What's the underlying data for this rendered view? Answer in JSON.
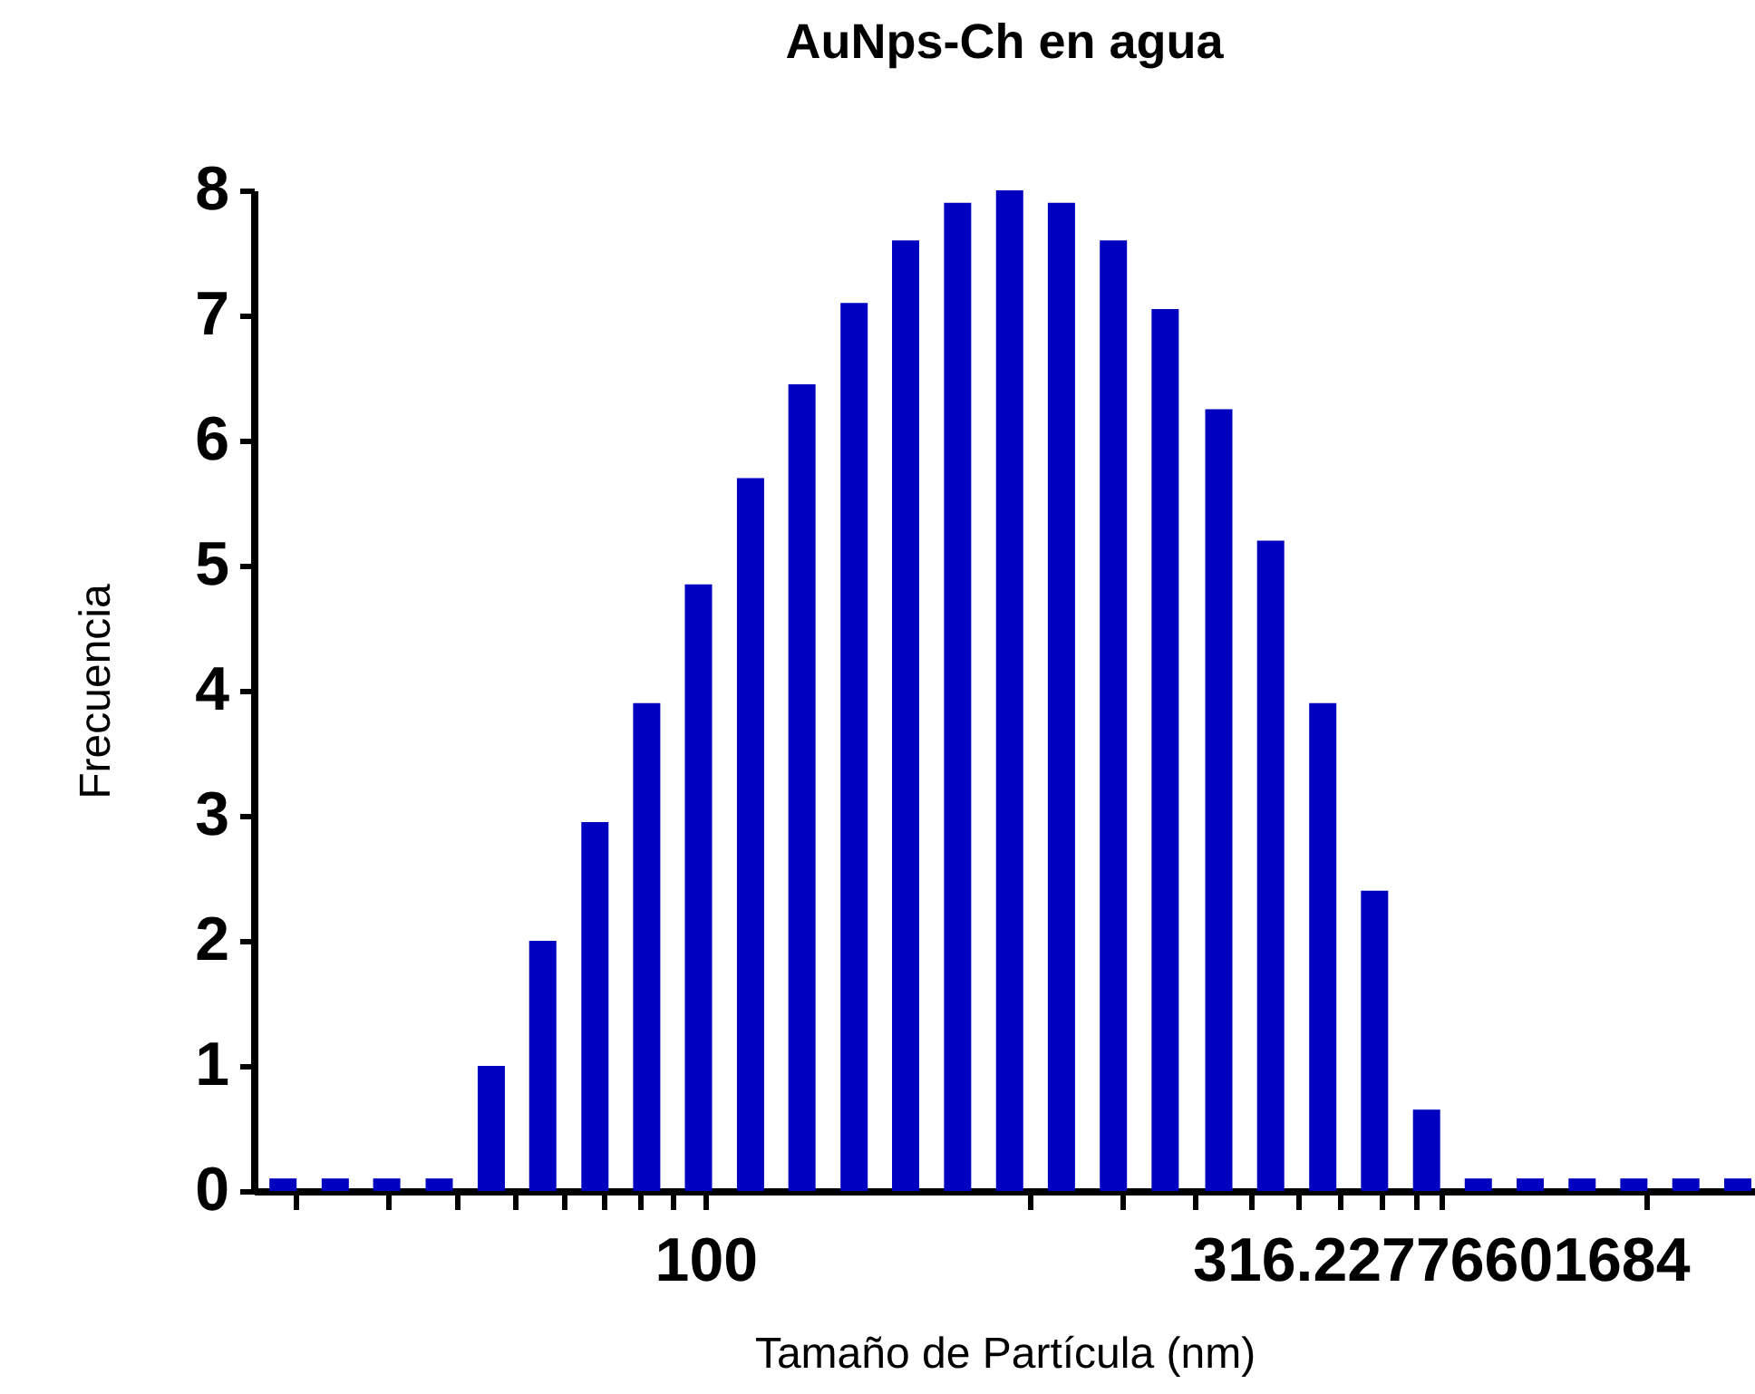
{
  "chart_data": {
    "type": "bar",
    "title": "AuNps-Ch en agua",
    "xlabel": "Tamaño de Partícula (nm)",
    "ylabel": "Frecuencia",
    "x": [
      51.6,
      56.0,
      60.7,
      65.9,
      71.5,
      77.5,
      84.1,
      91.2,
      98.9,
      107.3,
      116.3,
      126.2,
      136.8,
      148.4,
      161.0,
      174.6,
      189.4,
      205.4,
      223.4,
      242.3,
      262.9,
      285.1,
      309.3,
      335.4,
      363.8,
      394.6,
      427.9,
      464.2,
      503.5
    ],
    "series": [
      {
        "color": "#0000c0",
        "values": [
          0.1,
          0.1,
          0.1,
          0.1,
          1.0,
          2.0,
          2.95,
          3.9,
          4.85,
          5.7,
          6.45,
          7.1,
          7.6,
          7.9,
          8.0,
          7.9,
          7.6,
          7.05,
          6.25,
          5.2,
          3.9,
          2.4,
          0.65,
          0.1,
          0.1,
          0.1,
          0.1,
          0.1,
          0.1
        ]
      }
    ],
    "log": "x",
    "xlim": [
      50,
      510
    ],
    "xticks": [
      {
        "value": 52.6,
        "label": null
      },
      {
        "value": 60.9,
        "label": null
      },
      {
        "value": 67.8,
        "label": null
      },
      {
        "value": 74.1,
        "label": null
      },
      {
        "value": 80.2,
        "label": null
      },
      {
        "value": 85.3,
        "label": null
      },
      {
        "value": 90.2,
        "label": null
      },
      {
        "value": 95.1,
        "label": null
      },
      100,
      {
        "value": 166,
        "label": null
      },
      {
        "value": 192,
        "label": null
      },
      {
        "value": 215,
        "label": null
      },
      {
        "value": 235,
        "label": null
      },
      {
        "value": 253,
        "label": null
      },
      {
        "value": 270,
        "label": null
      },
      {
        "value": 288,
        "label": null
      },
      {
        "value": 304,
        "label": null
      },
      316.22776601684,
      {
        "value": 436,
        "label": null
      }
    ],
    "ylim": [
      0,
      8
    ],
    "yticks": [
      0,
      1,
      2,
      3,
      4,
      5,
      6,
      7,
      8
    ],
    "grid": false,
    "legend": false
  }
}
